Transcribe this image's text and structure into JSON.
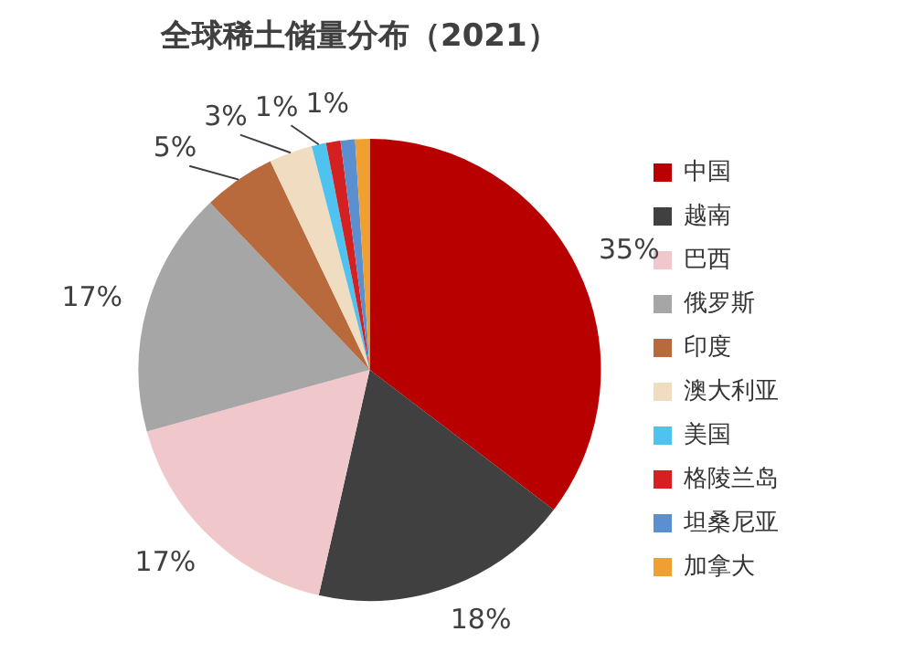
{
  "chart_data": {
    "type": "pie",
    "title": "全球稀土储量分布（2021）",
    "categories": [
      "中国",
      "越南",
      "巴西",
      "俄罗斯",
      "印度",
      "澳大利亚",
      "美国",
      "格陵兰岛",
      "坦桑尼亚",
      "加拿大"
    ],
    "values": [
      35,
      18,
      17,
      17,
      5,
      3,
      1,
      1,
      1,
      1
    ],
    "value_labels": [
      "35%",
      "18%",
      "17%",
      "17%",
      "5%",
      "3%",
      "1%",
      "1%",
      null,
      null
    ],
    "colors": [
      "#b80000",
      "#404040",
      "#f0c8cc",
      "#a6a6a6",
      "#b86a3c",
      "#f0dcc0",
      "#4fc3f0",
      "#d42020",
      "#5b8fd0",
      "#f0a030"
    ],
    "legend": "right"
  }
}
